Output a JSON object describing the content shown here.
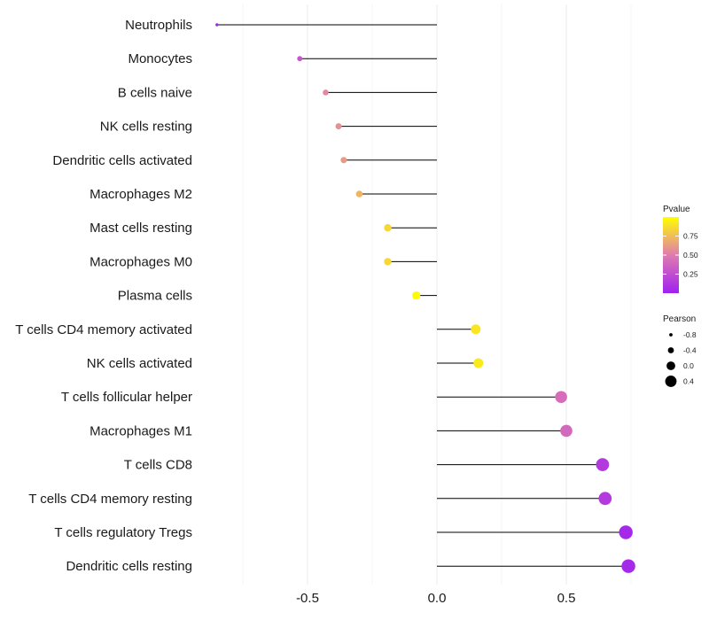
{
  "chart_data": {
    "type": "lollipop",
    "title": "",
    "xlabel": "",
    "ylabel": "",
    "xlim": [
      -0.92,
      0.82
    ],
    "x_ticks": [
      -0.5,
      0.0,
      0.5
    ],
    "x_tick_labels": [
      "-0.5",
      "0.0",
      "0.5"
    ],
    "grid": true,
    "categories": [
      "Neutrophils",
      "Monocytes",
      "B cells naive",
      "NK cells resting",
      "Dendritic cells activated",
      "Macrophages M2",
      "Mast cells resting",
      "Macrophages M0",
      "Plasma cells",
      "T cells CD4 memory activated",
      "NK cells activated",
      "T cells follicular helper",
      "Macrophages M1",
      "T cells CD8",
      "T cells CD4 memory resting",
      "T cells regulatory  Tregs ",
      "Dendritic cells resting"
    ],
    "pearson": [
      -0.85,
      -0.53,
      -0.43,
      -0.38,
      -0.36,
      -0.3,
      -0.19,
      -0.19,
      -0.08,
      0.15,
      0.16,
      0.48,
      0.5,
      0.64,
      0.65,
      0.73,
      0.74
    ],
    "pvalue": [
      0.02,
      0.3,
      0.55,
      0.58,
      0.62,
      0.72,
      0.85,
      0.85,
      0.98,
      0.9,
      0.92,
      0.42,
      0.4,
      0.15,
      0.15,
      0.05,
      0.05
    ],
    "color_legend": {
      "title": "Pvalue",
      "ticks": [
        0.25,
        0.5,
        0.75
      ],
      "tick_labels": [
        "0.25",
        "0.50",
        "0.75"
      ],
      "range": [
        0.0,
        1.0
      ],
      "colors": [
        "#a020f0",
        "#ffff00"
      ]
    },
    "size_legend": {
      "title": "Pearson",
      "values": [
        -0.8,
        -0.4,
        0.0,
        0.4
      ],
      "labels": [
        "-0.8",
        "-0.4",
        "0.0",
        "0.4"
      ]
    },
    "legend_position": "right"
  }
}
